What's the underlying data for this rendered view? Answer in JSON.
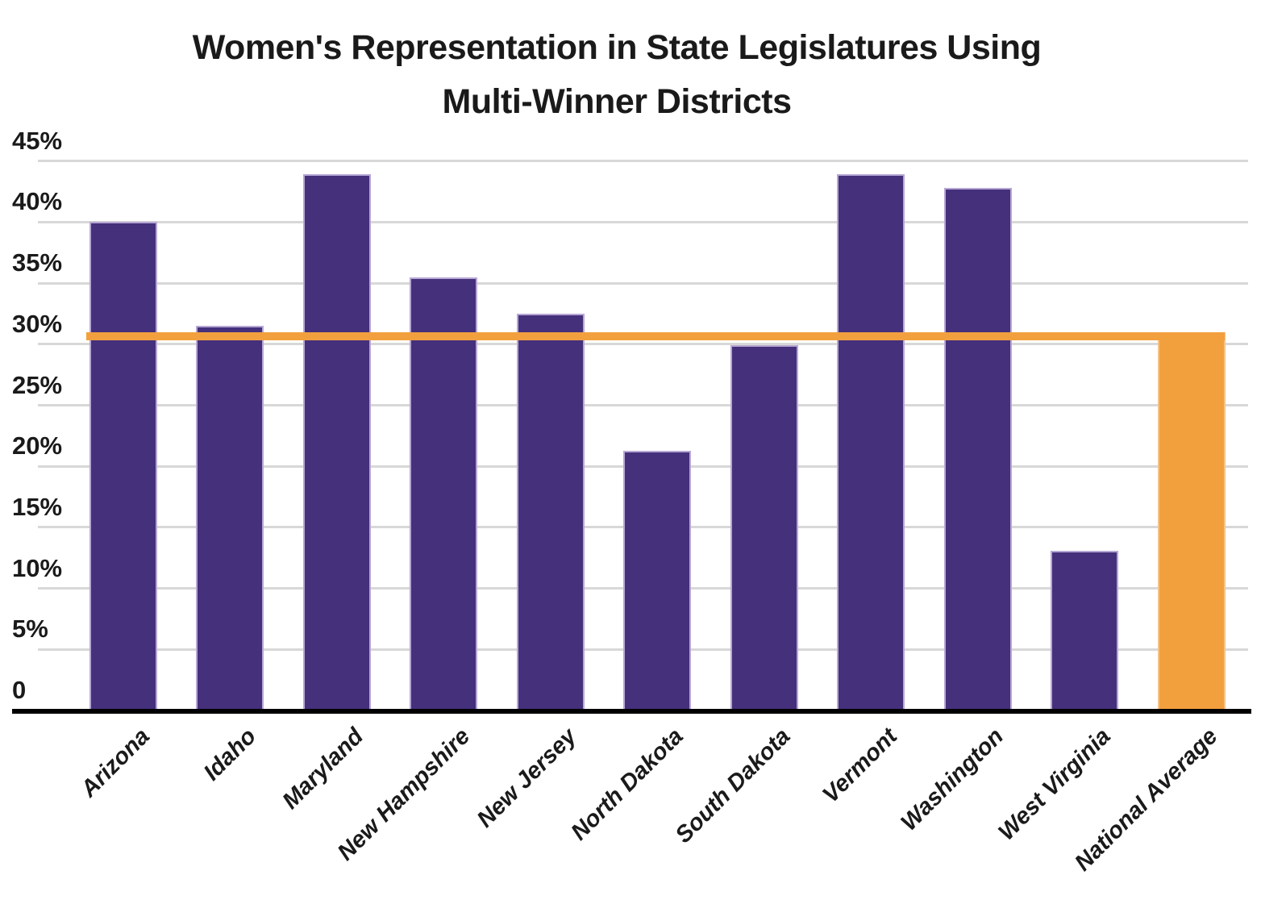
{
  "chart_data": {
    "type": "bar",
    "title": "Women's Representation in State Legislatures Using Multi-Winner Districts",
    "title_lines": [
      "Women's Representation in State Legislatures Using",
      "Multi-Winner Districts"
    ],
    "categories": [
      "Arizona",
      "Idaho",
      "Maryland",
      "New Hampshire",
      "New Jersey",
      "North Dakota",
      "South Dakota",
      "Vermont",
      "Washington",
      "West Virginia",
      "National Average"
    ],
    "values": [
      40.0,
      31.5,
      43.9,
      35.5,
      32.5,
      21.3,
      29.9,
      43.9,
      42.8,
      13.1,
      31.0
    ],
    "highlight_category": "National Average",
    "average_line": {
      "value": 31.0
    },
    "xlabel": "",
    "ylabel": "",
    "ylim": [
      0,
      45
    ],
    "grid": true,
    "legend": "none",
    "y_ticks": [
      {
        "label": "45%",
        "value": 45
      },
      {
        "label": "40%",
        "value": 40
      },
      {
        "label": "35%",
        "value": 35
      },
      {
        "label": "30%",
        "value": 30
      },
      {
        "label": "25%",
        "value": 25
      },
      {
        "label": "20%",
        "value": 20
      },
      {
        "label": "15%",
        "value": 15
      },
      {
        "label": "10%",
        "value": 10
      },
      {
        "label": "5%",
        "value": 5
      },
      {
        "label": "0",
        "value": 0
      }
    ],
    "colors": {
      "bar": "#45307C",
      "bar_border": "#B7A7D4",
      "highlight": "#F2A03E",
      "highlight_border": "#F6C386",
      "gridline": "#D8D8D8",
      "axis": "#000000",
      "text": "#1A1A1A"
    }
  }
}
